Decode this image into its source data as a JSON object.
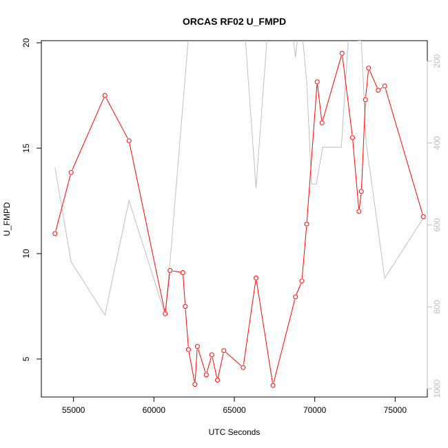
{
  "chart_data": {
    "type": "line",
    "title": "ORCAS RF02 U_FMPD",
    "xlabel": "UTC Seconds",
    "ylabel": "U_FMPD",
    "xlim": [
      53000,
      77000
    ],
    "ylim": [
      3.2,
      20.1
    ],
    "y2lim": [
      1020,
      150
    ],
    "x_ticks": [
      55000,
      60000,
      65000,
      70000,
      75000
    ],
    "y_ticks": [
      5,
      10,
      15,
      20
    ],
    "y2_ticks": [
      200,
      400,
      600,
      800,
      1000
    ],
    "colors": {
      "primary": "#ff0000",
      "secondary": "#bebebe"
    },
    "series": [
      {
        "color": "#ff0000",
        "axis": "left",
        "markers": "open-circle",
        "x": [
          53850,
          54850,
          56950,
          58450,
          60700,
          61000,
          61800,
          61950,
          62150,
          62550,
          62700,
          63250,
          63600,
          63950,
          64350,
          65550,
          66350,
          67400,
          68800,
          69200,
          69500,
          70150,
          70450,
          71700,
          72350,
          72750,
          72900,
          73150,
          73350,
          73950,
          74350,
          76750
        ],
        "y": [
          10.95,
          13.85,
          17.5,
          15.35,
          7.15,
          9.2,
          9.1,
          7.5,
          5.45,
          3.8,
          5.6,
          4.25,
          5.2,
          4.0,
          5.4,
          4.6,
          8.85,
          3.75,
          7.95,
          8.7,
          11.4,
          18.15,
          16.2,
          19.5,
          15.5,
          12.0,
          12.95,
          17.3,
          18.8,
          17.75,
          17.95,
          11.75
        ]
      },
      {
        "color": "#bebebe",
        "axis": "right",
        "markers": "none",
        "x": [
          53850,
          54850,
          56950,
          58450,
          60700,
          61000,
          62150,
          62250,
          62550,
          62700,
          63200,
          64450,
          64550,
          65600,
          66350,
          67150,
          68450,
          68800,
          69100,
          69500,
          69800,
          70100,
          70500,
          71650,
          72200,
          72500,
          72700,
          72900,
          73200,
          73900,
          74350,
          76800
        ],
        "y": [
          460,
          690,
          820,
          540,
          820,
          690,
          140,
          80,
          80,
          140,
          50,
          100,
          80,
          100,
          510,
          80,
          80,
          190,
          80,
          250,
          500,
          500,
          410,
          410,
          80,
          80,
          150,
          150,
          400,
          600,
          730,
          580
        ]
      }
    ]
  }
}
